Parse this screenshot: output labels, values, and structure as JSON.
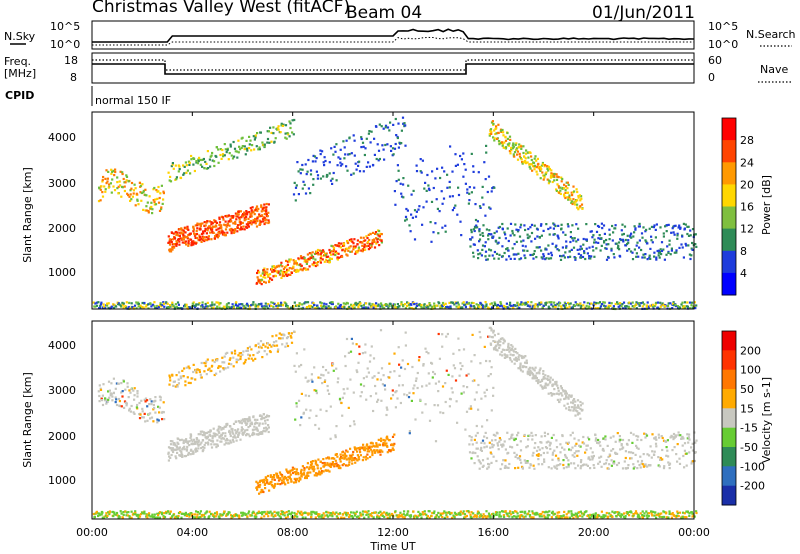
{
  "header": {
    "station": "Christmas Valley West (fitACF)",
    "beam": "Beam 04",
    "date": "01/Jun/2011"
  },
  "top_panels": {
    "nsky_label": "N.Sky",
    "nsky_ticks": [
      "10^5",
      "10^0"
    ],
    "nsearch_label": "N.Search",
    "nsearch_ticks": [
      "10^5",
      "10^0"
    ],
    "freq_label_1": "Freq.",
    "freq_label_2": "[MHz]",
    "freq_ticks": [
      "18",
      "8"
    ],
    "nave_label": "Nave",
    "nave_ticks": [
      "60",
      "0"
    ],
    "cpid_label": "CPID",
    "cpid_value": "normal 150 IF"
  },
  "chart_data": [
    {
      "type": "heatmap",
      "name": "power-panel",
      "ylabel": "Slant Range [km]",
      "xlabel": "",
      "yticks": [
        "1000",
        "2000",
        "3000",
        "4000"
      ],
      "ylim": [
        200,
        4500
      ],
      "colorbar": {
        "label": "Power [dB]",
        "ticks": [
          "4",
          "8",
          "12",
          "16",
          "20",
          "24",
          "28"
        ],
        "colors": [
          "#0000ff",
          "#1e3cdc",
          "#2e8b57",
          "#7fbf3f",
          "#ffd700",
          "#ff9900",
          "#ff4400",
          "#ff0000"
        ]
      }
    },
    {
      "type": "heatmap",
      "name": "velocity-panel",
      "ylabel": "Slant Range [km]",
      "xlabel": "Time UT",
      "yticks": [
        "1000",
        "2000",
        "3000",
        "4000"
      ],
      "ylim": [
        200,
        4500
      ],
      "xticks": [
        "00:00",
        "04:00",
        "08:00",
        "12:00",
        "16:00",
        "20:00",
        "00:00"
      ],
      "colorbar": {
        "label": "Velocity [m s-1]",
        "ticks": [
          "200",
          "100",
          "50",
          "15",
          "-15",
          "-50",
          "-100",
          "-200"
        ],
        "colors": [
          "#1a2fa8",
          "#2f6fbf",
          "#2e8b57",
          "#66cc33",
          "#c8c8c0",
          "#ffaa00",
          "#ff7700",
          "#ff3300",
          "#ee0000"
        ]
      }
    }
  ]
}
